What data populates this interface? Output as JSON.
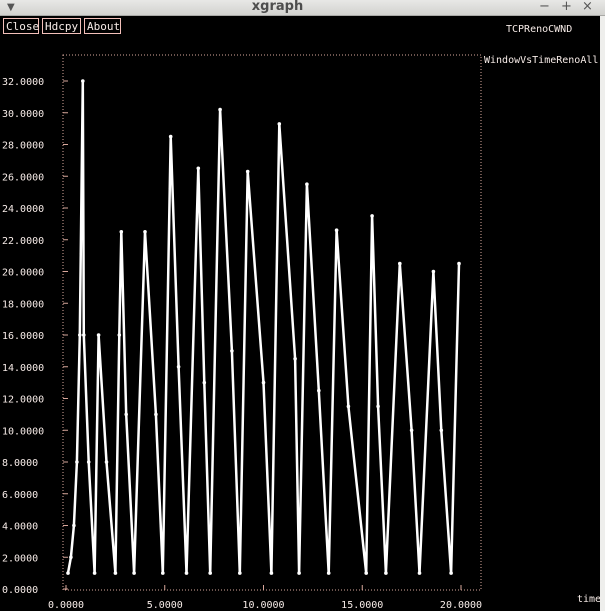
{
  "window": {
    "title": "xgraph",
    "menu_icon": "menu-triangle-icon",
    "controls": [
      "minimize-icon",
      "maximize-icon",
      "close-icon"
    ]
  },
  "buttons": {
    "close": "Close",
    "hdcpy": "Hdcpy",
    "about": "About"
  },
  "graph_title": "TCPRenoCWND",
  "x_unit_label": "time",
  "colors": {
    "background": "#000000",
    "grid": "#d9a79b",
    "series": "#ffffff",
    "text": "#f7ece8"
  },
  "chart_data": {
    "type": "line",
    "title": "TCPRenoCWND",
    "xlabel": "time",
    "ylabel": "",
    "xlim": [
      0,
      20
    ],
    "ylim": [
      0,
      32
    ],
    "x_ticks": [
      "0.0000",
      "5.0000",
      "10.0000",
      "15.0000",
      "20.0000"
    ],
    "y_ticks": [
      "0.0000",
      "2.0000",
      "4.0000",
      "6.0000",
      "8.0000",
      "10.0000",
      "12.0000",
      "14.0000",
      "16.0000",
      "18.0000",
      "20.0000",
      "22.0000",
      "24.0000",
      "26.0000",
      "28.0000",
      "30.0000",
      "32.0000"
    ],
    "grid": "dotted border only",
    "legend": "top-right",
    "series": [
      {
        "name": "WindowVsTimeRenoAll",
        "x": [
          0.1,
          0.25,
          0.4,
          0.55,
          0.7,
          0.85,
          0.9,
          1.15,
          1.45,
          1.65,
          2.05,
          2.5,
          2.7,
          2.8,
          3.05,
          3.45,
          4.0,
          4.55,
          4.9,
          5.3,
          5.7,
          6.1,
          6.7,
          7.0,
          7.3,
          7.8,
          8.4,
          8.8,
          9.2,
          10.0,
          10.4,
          10.8,
          11.6,
          11.8,
          12.2,
          12.8,
          13.3,
          13.7,
          14.3,
          15.2,
          15.5,
          15.8,
          16.2,
          16.9,
          17.5,
          17.9,
          18.6,
          19.0,
          19.5,
          19.9
        ],
        "y": [
          1,
          2,
          4,
          8,
          16,
          32,
          16,
          8,
          1,
          16,
          8,
          1,
          16,
          22.5,
          11,
          1,
          22.5,
          11,
          1,
          28.5,
          14,
          1,
          26.5,
          13,
          1,
          30.2,
          15,
          1,
          26.3,
          13,
          1,
          29.3,
          14.5,
          1,
          25.5,
          12.5,
          1,
          22.6,
          11.5,
          1,
          23.5,
          11.5,
          1,
          20.5,
          10,
          1,
          20,
          10,
          1,
          20.5
        ]
      }
    ]
  }
}
